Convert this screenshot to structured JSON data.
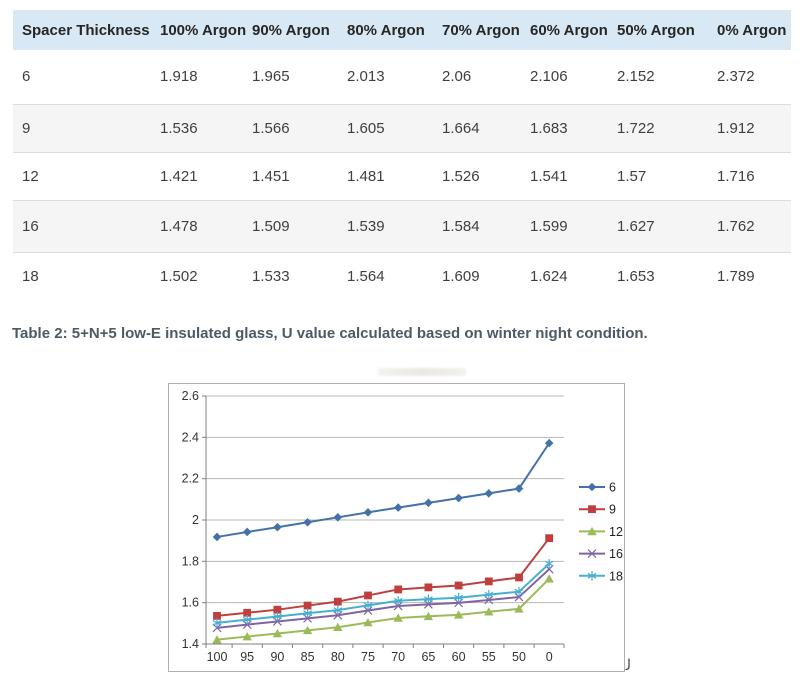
{
  "table": {
    "headers": [
      "Spacer Thickness",
      "100% Argon",
      "90% Argon",
      "80% Argon",
      "70% Argon",
      "60% Argon",
      "50% Argon",
      "0% Argon"
    ],
    "rows": [
      [
        "6",
        "1.918",
        "1.965",
        "2.013",
        "2.06",
        "2.106",
        "2.152",
        "2.372"
      ],
      [
        "9",
        "1.536",
        "1.566",
        "1.605",
        "1.664",
        "1.683",
        "1.722",
        "1.912"
      ],
      [
        "12",
        "1.421",
        "1.451",
        "1.481",
        "1.526",
        "1.541",
        "1.57",
        "1.716"
      ],
      [
        "16",
        "1.478",
        "1.509",
        "1.539",
        "1.584",
        "1.599",
        "1.627",
        "1.762"
      ],
      [
        "18",
        "1.502",
        "1.533",
        "1.564",
        "1.609",
        "1.624",
        "1.653",
        "1.789"
      ]
    ]
  },
  "caption": "Table 2: 5+N+5 low-E insulated glass, U value calculated based on winter night condition.",
  "chart_data": {
    "type": "line",
    "x": [
      "100",
      "95",
      "90",
      "85",
      "80",
      "75",
      "70",
      "65",
      "60",
      "55",
      "50",
      "0"
    ],
    "series": [
      {
        "name": "6",
        "color": "#4472a8",
        "marker": "diamond",
        "values": [
          1.918,
          1.942,
          1.965,
          1.989,
          2.013,
          2.037,
          2.06,
          2.083,
          2.106,
          2.129,
          2.152,
          2.372
        ]
      },
      {
        "name": "9",
        "color": "#bf3f3f",
        "marker": "square",
        "values": [
          1.536,
          1.551,
          1.566,
          1.586,
          1.605,
          1.635,
          1.664,
          1.674,
          1.683,
          1.703,
          1.722,
          1.912
        ]
      },
      {
        "name": "12",
        "color": "#9bbb59",
        "marker": "triangle",
        "values": [
          1.421,
          1.436,
          1.451,
          1.466,
          1.481,
          1.504,
          1.526,
          1.534,
          1.541,
          1.556,
          1.57,
          1.716
        ]
      },
      {
        "name": "16",
        "color": "#8064a2",
        "marker": "x",
        "values": [
          1.478,
          1.494,
          1.509,
          1.524,
          1.539,
          1.562,
          1.584,
          1.592,
          1.599,
          1.613,
          1.627,
          1.762
        ]
      },
      {
        "name": "18",
        "color": "#45b0d0",
        "marker": "asterisk",
        "values": [
          1.502,
          1.518,
          1.533,
          1.549,
          1.564,
          1.587,
          1.609,
          1.617,
          1.624,
          1.639,
          1.653,
          1.789
        ]
      }
    ],
    "ylim": [
      1.4,
      2.6
    ],
    "ytick_step": 0.2,
    "yticks": [
      "1.4",
      "1.6",
      "1.8",
      "2",
      "2.2",
      "2.4",
      "2.6"
    ],
    "grid": true,
    "legend_position": "right",
    "title": "",
    "xlabel": "",
    "ylabel": ""
  },
  "colors": {
    "header_bg": "#d8e9f5",
    "row_alt_bg": "#f5f5f5",
    "row_border": "#dcdcdc",
    "caption_text": "#4d5a66",
    "axis": "#808080",
    "gridline": "#b3b3b3"
  }
}
